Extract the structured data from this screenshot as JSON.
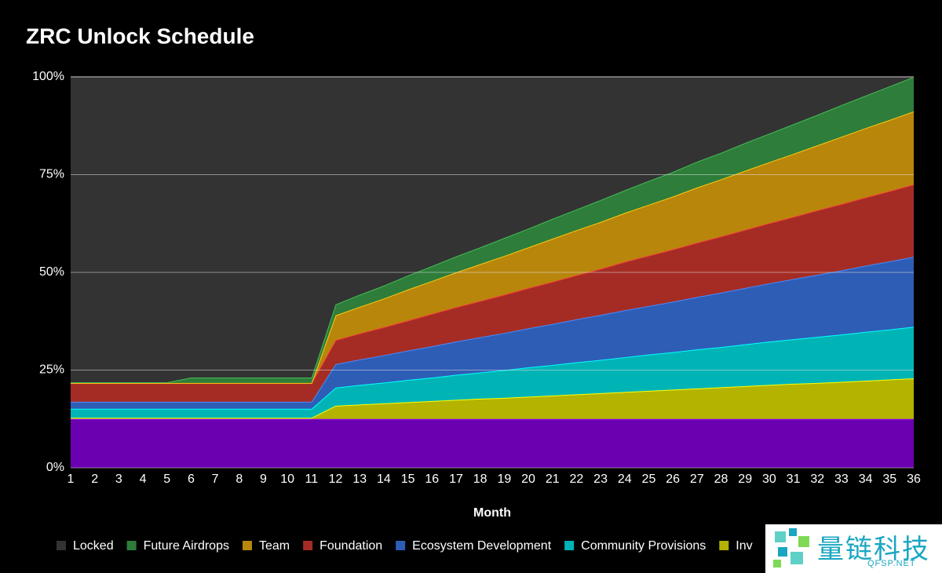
{
  "chart_data": {
    "type": "stacked_area",
    "title": "ZRC Unlock Schedule",
    "x_label": "Month",
    "categories": [
      1,
      2,
      3,
      4,
      5,
      6,
      7,
      8,
      9,
      10,
      11,
      12,
      13,
      14,
      15,
      16,
      17,
      18,
      19,
      20,
      21,
      22,
      23,
      24,
      25,
      26,
      27,
      28,
      29,
      30,
      31,
      32,
      33,
      34,
      35,
      36
    ],
    "ylim": [
      0,
      100
    ],
    "yticks": [
      {
        "value": 0,
        "label": "0%"
      },
      {
        "value": 25,
        "label": "25%"
      },
      {
        "value": 50,
        "label": "50%"
      },
      {
        "value": 75,
        "label": "75%"
      },
      {
        "value": 100,
        "label": "100%"
      }
    ],
    "grid": true,
    "series": [
      {
        "name": "Locked",
        "color": "#333333",
        "values": [
          78.1,
          78.1,
          78.1,
          78.1,
          78.1,
          76.9,
          76.9,
          76.9,
          76.9,
          76.9,
          76.9,
          58.2,
          55.7,
          53.4,
          50.8,
          48.4,
          45.9,
          43.6,
          41.2,
          38.8,
          36.3,
          33.9,
          31.5,
          29.0,
          26.6,
          24.3,
          21.7,
          19.4,
          16.9,
          14.5,
          12.1,
          9.7,
          7.2,
          4.8,
          2.4,
          0
        ]
      },
      {
        "name": "Future Airdrops",
        "color": "#2e7d3a",
        "values": [
          0.2,
          0.2,
          0.2,
          0.2,
          0.2,
          1.4,
          1.4,
          1.4,
          1.4,
          1.4,
          1.4,
          2.8,
          3.1,
          3.3,
          3.6,
          3.8,
          4.1,
          4.3,
          4.6,
          4.8,
          5.1,
          5.3,
          5.6,
          5.8,
          6.1,
          6.3,
          6.6,
          6.8,
          7.1,
          7.3,
          7.6,
          7.8,
          8.1,
          8.3,
          8.6,
          8.8
        ]
      },
      {
        "name": "Team",
        "color": "#b8860b",
        "values": [
          0,
          0,
          0,
          0,
          0,
          0,
          0,
          0,
          0,
          0,
          0,
          6.3,
          6.8,
          7.3,
          7.9,
          8.4,
          8.9,
          9.4,
          9.9,
          10.4,
          11.0,
          11.5,
          12.0,
          12.5,
          13.0,
          13.5,
          14.1,
          14.6,
          15.1,
          15.6,
          16.1,
          16.6,
          17.2,
          17.7,
          18.2,
          18.7
        ]
      },
      {
        "name": "Foundation",
        "color": "#a52c25",
        "values": [
          4.8,
          4.8,
          4.8,
          4.8,
          4.8,
          4.8,
          4.8,
          4.8,
          4.8,
          4.8,
          4.8,
          6.2,
          6.7,
          7.2,
          7.7,
          8.3,
          8.8,
          9.3,
          9.8,
          10.3,
          10.8,
          11.3,
          11.8,
          12.4,
          12.9,
          13.4,
          13.9,
          14.4,
          14.9,
          15.4,
          15.9,
          16.5,
          17.0,
          17.5,
          18.0,
          18.5
        ]
      },
      {
        "name": "Ecosystem Development",
        "color": "#2e5db5",
        "values": [
          1.8,
          1.8,
          1.8,
          1.8,
          1.8,
          1.8,
          1.8,
          1.8,
          1.8,
          1.8,
          1.8,
          6.0,
          6.5,
          7.0,
          7.5,
          8.0,
          8.5,
          9.0,
          9.5,
          10.0,
          10.5,
          11.0,
          11.5,
          12.0,
          12.4,
          12.9,
          13.4,
          13.9,
          14.4,
          14.9,
          15.4,
          15.9,
          16.4,
          16.9,
          17.4,
          17.9
        ]
      },
      {
        "name": "Community Provisions",
        "color": "#00b4b6",
        "values": [
          2.3,
          2.3,
          2.3,
          2.3,
          2.3,
          2.3,
          2.3,
          2.3,
          2.3,
          2.3,
          2.3,
          4.6,
          5.0,
          5.3,
          5.7,
          6.0,
          6.4,
          6.7,
          7.1,
          7.5,
          7.8,
          8.2,
          8.5,
          8.9,
          9.3,
          9.6,
          10.0,
          10.3,
          10.7,
          11.1,
          11.4,
          11.8,
          12.1,
          12.5,
          12.8,
          13.2
        ]
      },
      {
        "name": "Inv",
        "color": "#b3b300",
        "values": [
          0.3,
          0.3,
          0.3,
          0.3,
          0.3,
          0.3,
          0.3,
          0.3,
          0.3,
          0.3,
          0.3,
          3.4,
          3.7,
          4.0,
          4.3,
          4.6,
          4.9,
          5.2,
          5.4,
          5.7,
          6.0,
          6.3,
          6.6,
          6.9,
          7.2,
          7.5,
          7.8,
          8.1,
          8.4,
          8.7,
          9.0,
          9.2,
          9.5,
          9.8,
          10.1,
          10.4
        ]
      },
      {
        "color": "#6a00b0",
        "values": [
          12.5,
          12.5,
          12.5,
          12.5,
          12.5,
          12.5,
          12.5,
          12.5,
          12.5,
          12.5,
          12.5,
          12.5,
          12.5,
          12.5,
          12.5,
          12.5,
          12.5,
          12.5,
          12.5,
          12.5,
          12.5,
          12.5,
          12.5,
          12.5,
          12.5,
          12.5,
          12.5,
          12.5,
          12.5,
          12.5,
          12.5,
          12.5,
          12.5,
          12.5,
          12.5,
          12.5
        ]
      }
    ]
  },
  "watermark": {
    "brand": "量链科技",
    "site": "QFSP.NET"
  }
}
